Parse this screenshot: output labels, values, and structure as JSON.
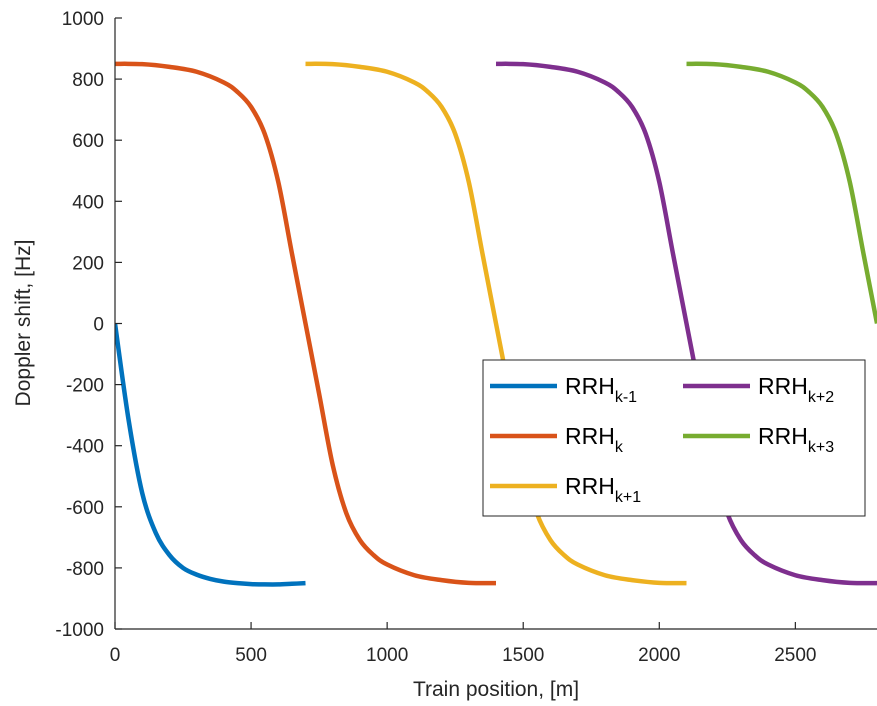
{
  "chart_data": {
    "type": "line",
    "xlabel": "Train position, [m]",
    "ylabel": "Doppler shift, [Hz]",
    "xlim": [
      0,
      2800
    ],
    "ylim": [
      -1000,
      1000
    ],
    "xticks": [
      0,
      500,
      1000,
      1500,
      2000,
      2500
    ],
    "yticks": [
      -1000,
      -800,
      -600,
      -400,
      -200,
      0,
      200,
      400,
      600,
      800,
      1000
    ],
    "grid": false,
    "legend_position": "lower-right",
    "series": [
      {
        "base": "RRH",
        "subscript": "k-1",
        "color": "#0072BD",
        "x": [
          0,
          50,
          100,
          150,
          200,
          250,
          300,
          350,
          400,
          450,
          500,
          550,
          600,
          650,
          700
        ],
        "y": [
          0,
          -316,
          -555,
          -686,
          -758,
          -800,
          -822,
          -836,
          -845,
          -850,
          -853,
          -854,
          -854,
          -852,
          -850
        ]
      },
      {
        "base": "RRH",
        "subscript": "k",
        "color": "#D95319",
        "x": [
          0,
          100,
          200,
          300,
          400,
          450,
          500,
          550,
          600,
          650,
          700,
          750,
          800,
          850,
          900,
          950,
          1000,
          1100,
          1200,
          1300,
          1400
        ],
        "y": [
          850,
          849,
          840,
          824,
          789,
          758,
          709,
          621,
          463,
          230,
          0,
          -230,
          -463,
          -621,
          -709,
          -758,
          -789,
          -824,
          -840,
          -849,
          -850
        ]
      },
      {
        "base": "RRH",
        "subscript": "k+1",
        "color": "#EDB120",
        "x": [
          700,
          800,
          900,
          1000,
          1100,
          1150,
          1200,
          1250,
          1300,
          1350,
          1400,
          1450,
          1500,
          1550,
          1600,
          1650,
          1700,
          1800,
          1900,
          2000,
          2100
        ],
        "y": [
          850,
          849,
          840,
          824,
          789,
          758,
          709,
          621,
          463,
          230,
          0,
          -230,
          -463,
          -621,
          -709,
          -758,
          -789,
          -824,
          -840,
          -849,
          -850
        ]
      },
      {
        "base": "RRH",
        "subscript": "k+2",
        "color": "#7E2F8E",
        "x": [
          1400,
          1500,
          1600,
          1700,
          1800,
          1850,
          1900,
          1950,
          2000,
          2050,
          2100,
          2150,
          2200,
          2250,
          2300,
          2350,
          2400,
          2500,
          2600,
          2700,
          2800
        ],
        "y": [
          850,
          849,
          840,
          824,
          789,
          758,
          709,
          621,
          463,
          230,
          0,
          -230,
          -463,
          -621,
          -709,
          -758,
          -789,
          -824,
          -840,
          -849,
          -850
        ]
      },
      {
        "base": "RRH",
        "subscript": "k+3",
        "color": "#77AC30",
        "x": [
          2100,
          2200,
          2300,
          2400,
          2500,
          2550,
          2600,
          2650,
          2700,
          2750,
          2800
        ],
        "y": [
          850,
          849,
          840,
          824,
          789,
          758,
          709,
          621,
          463,
          230,
          0
        ]
      }
    ]
  }
}
